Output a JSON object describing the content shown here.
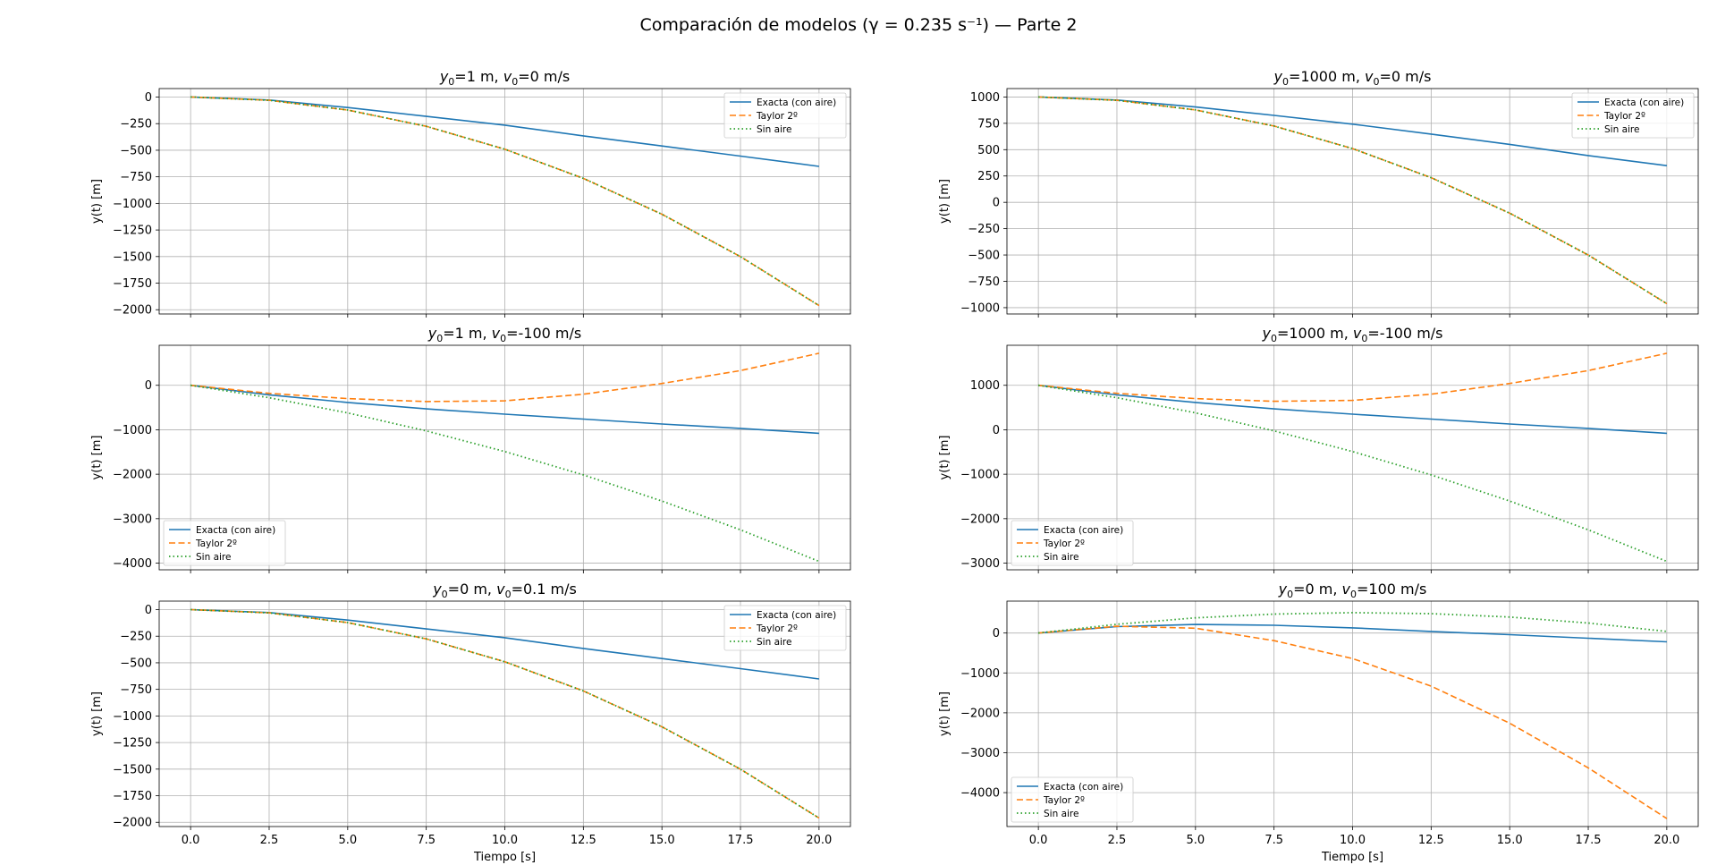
{
  "figure": {
    "suptitle": "Comparación de modelos (γ = 0.235 s⁻¹) — Parte 2"
  },
  "colors": {
    "exacta": "#1f77b4",
    "taylor": "#ff7f0e",
    "sin_aire": "#2ca02c",
    "grid": "#b0b0b0"
  },
  "chart_data": [
    {
      "type": "line",
      "title": "y0=1 m, v0=0 m/s",
      "y0": "1",
      "v0": "0",
      "xlabel": "",
      "ylabel": "y(t) [m]",
      "xlim": [
        -1,
        21
      ],
      "ylim": [
        -2040,
        80
      ],
      "xticks": [
        0,
        2.5,
        5,
        7.5,
        10,
        12.5,
        15,
        17.5,
        20
      ],
      "xtick_labels_visible": false,
      "yticks": [
        0,
        -250,
        -500,
        -750,
        -1000,
        -1250,
        -1500,
        -1750,
        -2000
      ],
      "legend": "upper right",
      "grid": true,
      "x": [
        0,
        2.5,
        5,
        7.5,
        10,
        12.5,
        15,
        17.5,
        20
      ],
      "series": [
        {
          "name": "Exacta (con aire)",
          "values": [
            1,
            -28,
            -98,
            -182,
            -264,
            -365,
            -460,
            -555,
            -652
          ]
        },
        {
          "name": "Taylor 2º",
          "values": [
            1,
            -30,
            -122,
            -275,
            -490,
            -765,
            -1102,
            -1501,
            -1961
          ]
        },
        {
          "name": "Sin aire",
          "values": [
            1,
            -30,
            -122,
            -275,
            -490,
            -765,
            -1102,
            -1501,
            -1961
          ]
        }
      ]
    },
    {
      "type": "line",
      "title": "y0=1000 m, v0=0 m/s",
      "y0": "1000",
      "v0": "0",
      "xlabel": "",
      "ylabel": "y(t) [m]",
      "xlim": [
        -1,
        21
      ],
      "ylim": [
        -1060,
        1080
      ],
      "xticks": [
        0,
        2.5,
        5,
        7.5,
        10,
        12.5,
        15,
        17.5,
        20
      ],
      "xtick_labels_visible": false,
      "yticks": [
        1000,
        750,
        500,
        250,
        0,
        -250,
        -500,
        -750,
        -1000
      ],
      "legend": "upper right",
      "grid": true,
      "x": [
        0,
        2.5,
        5,
        7.5,
        10,
        12.5,
        15,
        17.5,
        20
      ],
      "series": [
        {
          "name": "Exacta (con aire)",
          "values": [
            1000,
            971,
            905,
            825,
            742,
            648,
            550,
            444,
            348
          ]
        },
        {
          "name": "Taylor 2º",
          "values": [
            1000,
            969,
            877,
            724,
            510,
            234,
            -103,
            -500,
            -962
          ]
        },
        {
          "name": "Sin aire",
          "values": [
            1000,
            969,
            877,
            724,
            510,
            234,
            -103,
            -500,
            -962
          ]
        }
      ]
    },
    {
      "type": "line",
      "title": "y0=1 m, v0=-100 m/s",
      "y0": "1",
      "v0": "-100",
      "xlabel": "",
      "ylabel": "y(t) [m]",
      "xlim": [
        -1,
        21
      ],
      "ylim": [
        -4150,
        900
      ],
      "xticks": [
        0,
        2.5,
        5,
        7.5,
        10,
        12.5,
        15,
        17.5,
        20
      ],
      "xtick_labels_visible": false,
      "yticks": [
        0,
        -1000,
        -2000,
        -3000,
        -4000
      ],
      "legend": "lower left",
      "grid": true,
      "x": [
        0,
        2.5,
        5,
        7.5,
        10,
        12.5,
        15,
        17.5,
        20
      ],
      "series": [
        {
          "name": "Exacta (con aire)",
          "values": [
            1,
            -215,
            -385,
            -530,
            -650,
            -760,
            -870,
            -970,
            -1080
          ]
        },
        {
          "name": "Taylor 2º",
          "values": [
            1,
            -180,
            -300,
            -365,
            -350,
            -200,
            40,
            330,
            720
          ]
        },
        {
          "name": "Sin aire",
          "values": [
            1,
            -280,
            -622,
            -1025,
            -1490,
            -2016,
            -2602,
            -3250,
            -3961
          ]
        }
      ]
    },
    {
      "type": "line",
      "title": "y0=1000 m, v0=-100 m/s",
      "y0": "1000",
      "v0": "-100",
      "xlabel": "",
      "ylabel": "y(t) [m]",
      "xlim": [
        -1,
        21
      ],
      "ylim": [
        -3150,
        1900
      ],
      "xticks": [
        0,
        2.5,
        5,
        7.5,
        10,
        12.5,
        15,
        17.5,
        20
      ],
      "xtick_labels_visible": false,
      "yticks": [
        1000,
        0,
        -1000,
        -2000,
        -3000
      ],
      "legend": "lower left",
      "grid": true,
      "x": [
        0,
        2.5,
        5,
        7.5,
        10,
        12.5,
        15,
        17.5,
        20
      ],
      "series": [
        {
          "name": "Exacta (con aire)",
          "values": [
            1000,
            784,
            614,
            470,
            350,
            240,
            130,
            30,
            -80
          ]
        },
        {
          "name": "Taylor 2º",
          "values": [
            1000,
            820,
            700,
            640,
            660,
            800,
            1040,
            1330,
            1720
          ]
        },
        {
          "name": "Sin aire",
          "values": [
            1000,
            720,
            380,
            -25,
            -490,
            -1016,
            -1602,
            -2250,
            -2960
          ]
        }
      ]
    },
    {
      "type": "line",
      "title": "y0=0 m, v0=0.1 m/s",
      "y0": "0",
      "v0": "0.1",
      "xlabel": "Tiempo [s]",
      "ylabel": "y(t) [m]",
      "xlim": [
        -1,
        21
      ],
      "ylim": [
        -2040,
        80
      ],
      "xticks": [
        0,
        2.5,
        5,
        7.5,
        10,
        12.5,
        15,
        17.5,
        20
      ],
      "xtick_labels_visible": true,
      "xtick_labels": [
        "0.0",
        "2.5",
        "5.0",
        "7.5",
        "10.0",
        "12.5",
        "15.0",
        "17.5",
        "20.0"
      ],
      "yticks": [
        0,
        -250,
        -500,
        -750,
        -1000,
        -1250,
        -1500,
        -1750,
        -2000
      ],
      "legend": "upper right",
      "grid": true,
      "x": [
        0,
        2.5,
        5,
        7.5,
        10,
        12.5,
        15,
        17.5,
        20
      ],
      "series": [
        {
          "name": "Exacta (con aire)",
          "values": [
            0,
            -28,
            -98,
            -182,
            -264,
            -365,
            -460,
            -555,
            -652
          ]
        },
        {
          "name": "Taylor 2º",
          "values": [
            0,
            -30,
            -122,
            -275,
            -490,
            -765,
            -1102,
            -1501,
            -1960
          ]
        },
        {
          "name": "Sin aire",
          "values": [
            0,
            -30,
            -122,
            -275,
            -490,
            -765,
            -1102,
            -1501,
            -1960
          ]
        }
      ]
    },
    {
      "type": "line",
      "title": "y0=0 m, v0=100 m/s",
      "y0": "0",
      "v0": "100",
      "xlabel": "Tiempo [s]",
      "ylabel": "y(t) [m]",
      "xlim": [
        -1,
        21
      ],
      "ylim": [
        -4850,
        800
      ],
      "xticks": [
        0,
        2.5,
        5,
        7.5,
        10,
        12.5,
        15,
        17.5,
        20
      ],
      "xtick_labels_visible": true,
      "xtick_labels": [
        "0.0",
        "2.5",
        "5.0",
        "7.5",
        "10.0",
        "12.5",
        "15.0",
        "17.5",
        "20.0"
      ],
      "yticks": [
        0,
        -1000,
        -2000,
        -3000,
        -4000
      ],
      "legend": "lower left",
      "grid": true,
      "x": [
        0,
        2.5,
        5,
        7.5,
        10,
        12.5,
        15,
        17.5,
        20
      ],
      "series": [
        {
          "name": "Exacta (con aire)",
          "values": [
            0,
            160,
            215,
            195,
            130,
            40,
            -40,
            -130,
            -220
          ]
        },
        {
          "name": "Taylor 2º",
          "values": [
            0,
            170,
            120,
            -190,
            -640,
            -1330,
            -2260,
            -3380,
            -4650
          ]
        },
        {
          "name": "Sin aire",
          "values": [
            0,
            220,
            380,
            475,
            510,
            485,
            400,
            250,
            40
          ]
        }
      ]
    }
  ]
}
